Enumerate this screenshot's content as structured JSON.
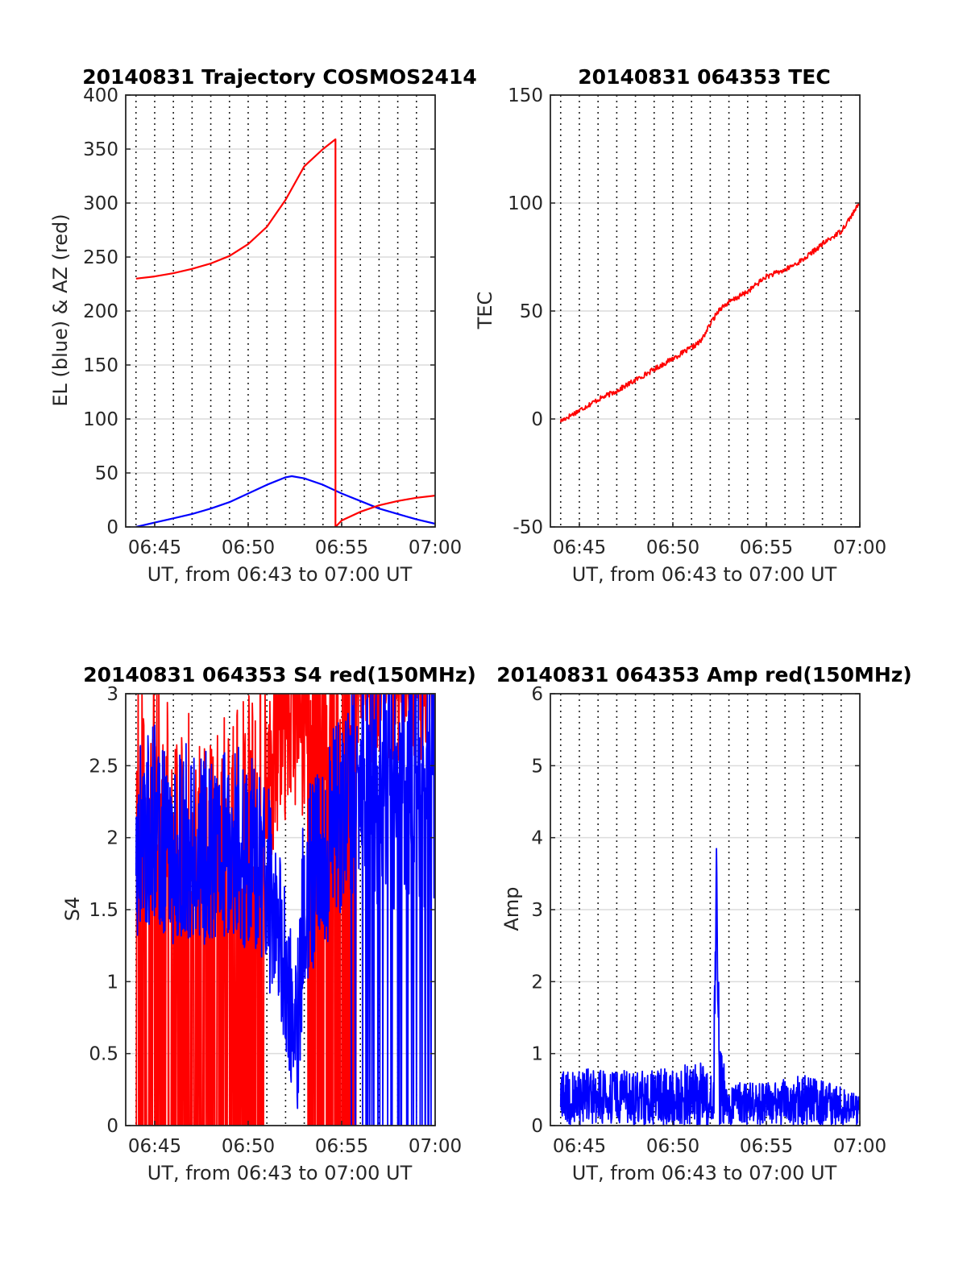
{
  "figure": {
    "background": "#ffffff",
    "axes_color": "#262626",
    "grid_color": "#dcdcdc",
    "major_grid_color": "#222222"
  },
  "chart_data": [
    {
      "id": "trajectory",
      "type": "line",
      "title": "20140831 Trajectory COSMOS2414",
      "xlabel": "UT, from 06:43 to 07:00 UT",
      "ylabel": "EL (blue) & AZ (red)",
      "xlim": [
        "06:43:27",
        "07:00:00"
      ],
      "ylim": [
        0,
        400
      ],
      "yticks": [
        0,
        50,
        100,
        150,
        200,
        250,
        300,
        350,
        400
      ],
      "xticks": [
        "06:45",
        "06:50",
        "06:55",
        "07:00"
      ],
      "grid": "on",
      "series": [
        {
          "key": "el",
          "color": "#0000ff",
          "x": [
            "06:44:00",
            "06:45:00",
            "06:46:00",
            "06:47:00",
            "06:48:00",
            "06:49:00",
            "06:50:00",
            "06:51:00",
            "06:52:00",
            "06:52:20",
            "06:53:00",
            "06:54:00",
            "06:55:00",
            "06:56:00",
            "06:57:00",
            "06:58:00",
            "06:59:00",
            "07:00:00"
          ],
          "values": [
            0,
            4,
            8,
            12,
            17,
            23,
            31,
            39,
            46,
            47,
            45,
            39,
            31,
            24,
            17,
            12,
            7,
            3
          ]
        },
        {
          "key": "az",
          "color": "#ff0000",
          "x": [
            "06:44:00",
            "06:45:00",
            "06:46:00",
            "06:47:00",
            "06:48:00",
            "06:49:00",
            "06:50:00",
            "06:51:00",
            "06:52:00",
            "06:53:00",
            "06:54:00",
            "06:54:40",
            "06:54:40",
            "06:55:00",
            "06:56:00",
            "06:57:00",
            "06:58:00",
            "06:59:00",
            "07:00:00"
          ],
          "values": [
            230,
            232,
            235,
            239,
            244,
            251,
            262,
            278,
            303,
            334,
            350,
            359,
            0,
            6,
            14,
            20,
            24,
            27,
            29
          ]
        }
      ]
    },
    {
      "id": "tec",
      "type": "line",
      "title": "20140831 064353 TEC",
      "xlabel": "UT, from 06:43 to 07:00 UT",
      "ylabel": "TEC",
      "xlim": [
        "06:43:27",
        "07:00:00"
      ],
      "ylim": [
        -50,
        150
      ],
      "yticks": [
        -50,
        0,
        50,
        100,
        150
      ],
      "xticks": [
        "06:45",
        "06:50",
        "06:55",
        "07:00"
      ],
      "grid": "on",
      "series": [
        {
          "key": "tec",
          "color": "#ff0000",
          "x": [
            "06:44:00",
            "06:45:00",
            "06:46:00",
            "06:47:00",
            "06:48:00",
            "06:49:00",
            "06:50:00",
            "06:51:00",
            "06:51:30",
            "06:52:00",
            "06:52:30",
            "06:53:00",
            "06:54:00",
            "06:55:00",
            "06:56:00",
            "06:57:00",
            "06:58:00",
            "06:59:00",
            "07:00:00"
          ],
          "values": [
            -1,
            4,
            9,
            13,
            18,
            23,
            28,
            33,
            36,
            44,
            51,
            54,
            59,
            66,
            69,
            74,
            81,
            87,
            100
          ]
        }
      ]
    },
    {
      "id": "s4",
      "type": "line",
      "title": "20140831 064353 S4 red(150MHz)",
      "xlabel": "UT, from 06:43 to 07:00 UT",
      "ylabel": "S4",
      "xlim": [
        "06:43:27",
        "07:00:00"
      ],
      "ylim": [
        0,
        3
      ],
      "yticks": [
        0,
        0.5,
        1,
        1.5,
        2,
        2.5,
        3
      ],
      "xticks": [
        "06:45",
        "06:50",
        "06:55",
        "07:00"
      ],
      "grid": "on",
      "series": [
        {
          "key": "s4_red",
          "color": "#ff0000",
          "x": [
            "06:44:00",
            "06:46:00",
            "06:48:00",
            "06:50:00",
            "06:52:00",
            "06:54:00",
            "06:56:00",
            "06:58:00",
            "07:00:00"
          ],
          "values": [
            2.3,
            1.8,
            1.7,
            1.9,
            2.6,
            2.6,
            3.0,
            3.0,
            3.0
          ],
          "dropouts_to_zero": [
            [
              "06:44:00",
              "06:50:50"
            ],
            [
              "06:53:10",
              "06:55:50"
            ]
          ]
        },
        {
          "key": "s4_blue",
          "color": "#0000ff",
          "x": [
            "06:44:00",
            "06:45:00",
            "06:46:00",
            "06:47:00",
            "06:48:00",
            "06:49:00",
            "06:50:00",
            "06:51:00",
            "06:52:00",
            "06:52:30",
            "06:53:00",
            "06:54:00",
            "06:55:00",
            "06:56:00",
            "06:57:00",
            "06:58:00",
            "06:59:00",
            "07:00:00"
          ],
          "values": [
            2.0,
            2.1,
            1.9,
            2.0,
            1.9,
            2.0,
            1.9,
            1.7,
            1.1,
            0.4,
            1.6,
            1.9,
            2.2,
            2.3,
            2.2,
            2.2,
            2.2,
            2.1
          ]
        }
      ]
    },
    {
      "id": "amp",
      "type": "line",
      "title": "20140831 064353 Amp red(150MHz)",
      "xlabel": "UT, from 06:43 to 07:00 UT",
      "ylabel": "Amp",
      "xlim": [
        "06:43:27",
        "07:00:00"
      ],
      "ylim": [
        0,
        6
      ],
      "yticks": [
        0,
        1,
        2,
        3,
        4,
        5,
        6
      ],
      "xticks": [
        "06:45",
        "06:50",
        "06:55",
        "07:00"
      ],
      "grid": "on",
      "series": [
        {
          "key": "amp_blue",
          "color": "#0000ff",
          "x": [
            "06:44:00",
            "06:46:00",
            "06:48:00",
            "06:50:00",
            "06:51:30",
            "06:52:10",
            "06:52:20",
            "06:52:30",
            "06:53:00",
            "06:55:00",
            "06:57:00",
            "06:59:00",
            "07:00:00"
          ],
          "values": [
            0.75,
            0.8,
            0.75,
            0.8,
            0.9,
            0.7,
            4.1,
            1.1,
            0.6,
            0.6,
            0.7,
            0.55,
            0.4
          ]
        }
      ]
    }
  ]
}
